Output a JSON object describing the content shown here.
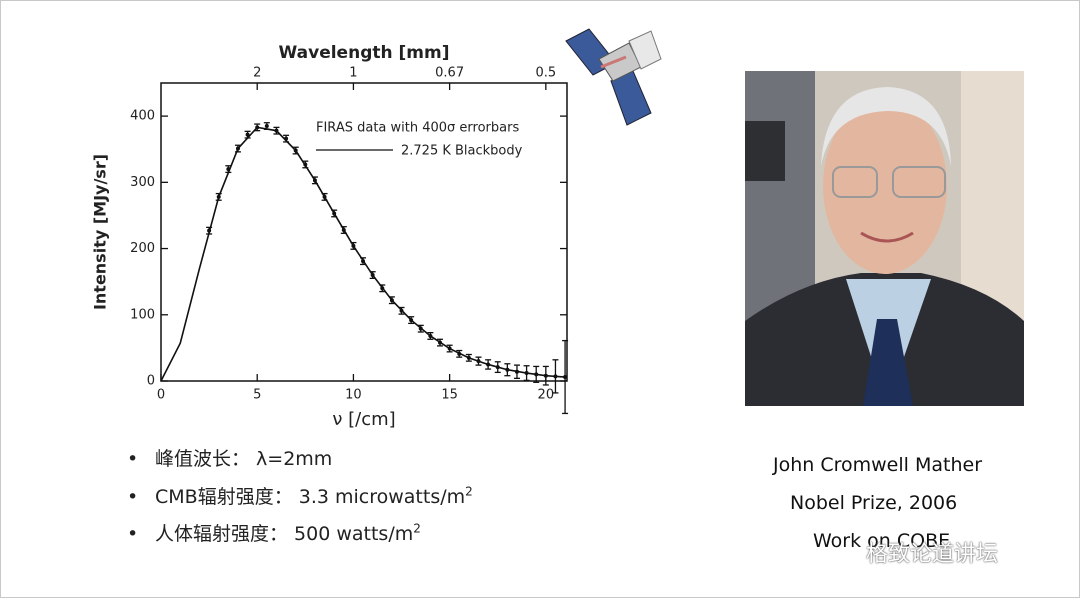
{
  "chart_data": {
    "type": "line",
    "xlabel": "ν [/cm]",
    "ylabel": "Intensity [MJy/sr]",
    "x2label": "Wavelength [mm]",
    "xlim": [
      0,
      21.1
    ],
    "xticks": [
      0,
      5,
      10,
      15,
      20
    ],
    "ylim": [
      0,
      450
    ],
    "yticks": [
      0,
      100,
      200,
      300,
      400
    ],
    "x2ticks": [
      {
        "value": 5,
        "label": "2"
      },
      {
        "value": 10,
        "label": "1"
      },
      {
        "value": 15,
        "label": "0.67"
      },
      {
        "value": 20,
        "label": "0.5"
      }
    ],
    "series": [
      {
        "name": "FIRAS data with 400σ errorbars",
        "type": "scatter",
        "color": "#111111",
        "x": [
          2.5,
          3,
          3.5,
          4,
          4.5,
          5,
          5.5,
          6,
          6.5,
          7,
          7.5,
          8,
          8.5,
          9,
          9.5,
          10,
          10.5,
          11,
          11.5,
          12,
          12.5,
          13,
          13.5,
          14,
          14.5,
          15,
          15.5,
          16,
          16.5,
          17,
          17.5,
          18,
          18.5,
          19,
          19.5,
          20,
          20.5,
          21
        ],
        "values": [
          227,
          278,
          320,
          351,
          372,
          383,
          385,
          378,
          366,
          348,
          327,
          303,
          278,
          253,
          228,
          204,
          181,
          160,
          140,
          122,
          106,
          92,
          79,
          68,
          58,
          49,
          41,
          35,
          30,
          25,
          21,
          17,
          14,
          12,
          10,
          8,
          7,
          6
        ],
        "errors": [
          5,
          5,
          5,
          5,
          5,
          5,
          5,
          5,
          5,
          5,
          5,
          5,
          5,
          5,
          5,
          5,
          5,
          5,
          5,
          5,
          5,
          5,
          5,
          5,
          5,
          5,
          5,
          5,
          6,
          7,
          8,
          9,
          10,
          11,
          12,
          14,
          25,
          55
        ]
      },
      {
        "name": "2.725 K Blackbody",
        "type": "line",
        "color": "#111111",
        "x": [
          0,
          1,
          2,
          3,
          4,
          5,
          6,
          7,
          8,
          9,
          10,
          11,
          12,
          13,
          14,
          15,
          16,
          17,
          18,
          19,
          20,
          21
        ],
        "values": [
          0,
          57,
          170,
          278,
          351,
          383,
          378,
          348,
          303,
          253,
          204,
          160,
          122,
          92,
          68,
          49,
          35,
          25,
          17,
          12,
          8,
          6
        ]
      }
    ]
  },
  "bullets": [
    {
      "text": "峰值波长：  λ=2mm"
    },
    {
      "text": "CMB辐射强度：  3.3 microwatts/m",
      "sup": "2"
    },
    {
      "text": "人体辐射强度：  500 watts/m",
      "sup": "2"
    }
  ],
  "caption": [
    "John Cromwell Mather",
    "Nobel Prize, 2006",
    "Work on COBE"
  ],
  "watermark": "格致论道讲坛"
}
